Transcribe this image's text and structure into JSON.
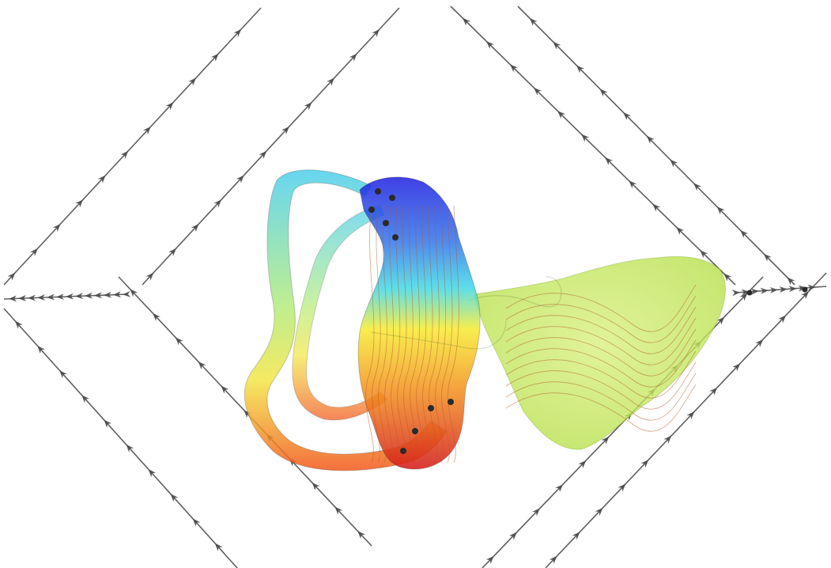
{
  "figure": {
    "kind": "3d-flow-visualization",
    "background": "#ffffff",
    "colormap": [
      "#1d1de0",
      "#2fd4e6",
      "#f5ea2a",
      "#f28a1f",
      "#d81e1e"
    ],
    "neutral_region_color": "#c9e85a",
    "streamline_color": "#b8572a",
    "guide_line_color": "#5f5f5f",
    "marker_color": "#2a2a2a",
    "arrow_icon": "arrowhead-icon"
  }
}
